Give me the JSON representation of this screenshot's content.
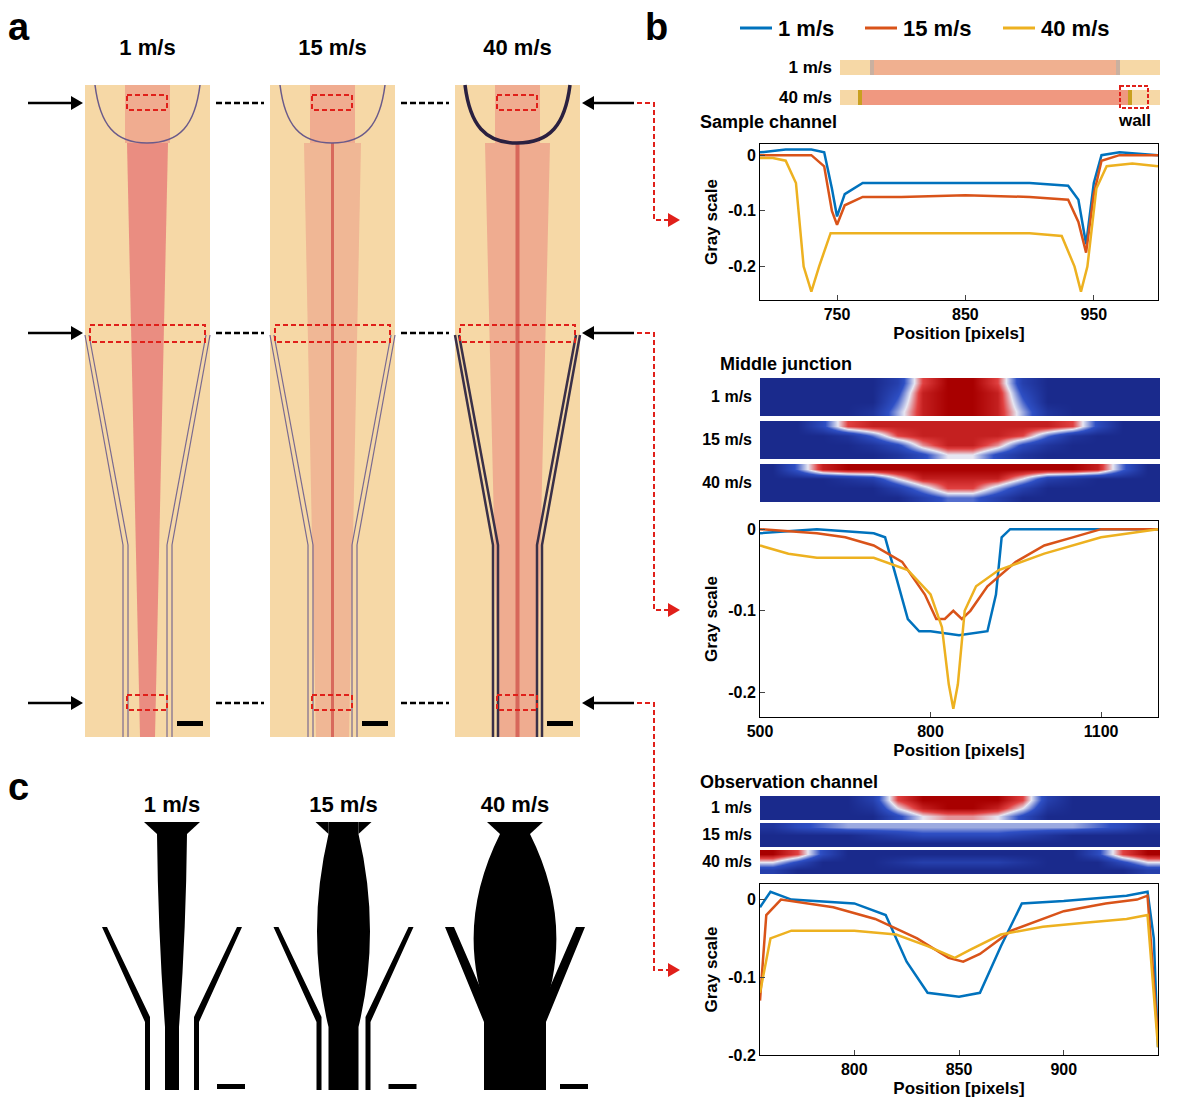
{
  "figure": {
    "panel_letters": [
      "a",
      "b",
      "c"
    ],
    "panel_a": {
      "labels": [
        "1 m/s",
        "15 m/s",
        "40 m/s"
      ]
    },
    "panel_c": {
      "labels": [
        "1 m/s",
        "15 m/s",
        "40 m/s"
      ]
    },
    "sample_strips": {
      "labels": [
        "1 m/s",
        "40 m/s"
      ],
      "annotation": "wall"
    }
  },
  "chart_data": [
    {
      "type": "line",
      "title": "Sample channel",
      "x_label": "Position [pixels]",
      "y_label": "Gray scale",
      "xlim": [
        690,
        1000
      ],
      "xticks": [
        750,
        850,
        950
      ],
      "ylim": [
        -0.26,
        0.02
      ],
      "yticks": [
        -0.2,
        -0.1,
        0
      ],
      "grid": false,
      "legend": "top",
      "series": [
        {
          "name": "1 m/s",
          "color": "#0072bd",
          "x": [
            690,
            710,
            730,
            740,
            746,
            750,
            756,
            770,
            800,
            850,
            900,
            930,
            938,
            944,
            950,
            956,
            970,
            1000
          ],
          "values": [
            0.005,
            0.01,
            0.01,
            0.005,
            -0.06,
            -0.11,
            -0.07,
            -0.05,
            -0.05,
            -0.05,
            -0.05,
            -0.055,
            -0.08,
            -0.16,
            -0.05,
            0,
            0.005,
            0
          ]
        },
        {
          "name": "15 m/s",
          "color": "#d95319",
          "x": [
            690,
            710,
            730,
            740,
            746,
            750,
            756,
            770,
            800,
            850,
            900,
            930,
            938,
            944,
            950,
            956,
            970,
            1000
          ],
          "values": [
            0,
            0,
            0,
            -0.02,
            -0.1,
            -0.125,
            -0.09,
            -0.075,
            -0.075,
            -0.072,
            -0.075,
            -0.08,
            -0.12,
            -0.175,
            -0.07,
            -0.01,
            0,
            0
          ]
        },
        {
          "name": "40 m/s",
          "color": "#edb120",
          "x": [
            690,
            700,
            710,
            718,
            724,
            730,
            736,
            745,
            760,
            800,
            850,
            900,
            925,
            935,
            940,
            945,
            952,
            960,
            980,
            1000
          ],
          "values": [
            -0.005,
            -0.005,
            -0.01,
            -0.05,
            -0.2,
            -0.245,
            -0.2,
            -0.14,
            -0.14,
            -0.14,
            -0.14,
            -0.14,
            -0.145,
            -0.2,
            -0.245,
            -0.2,
            -0.06,
            -0.02,
            -0.015,
            -0.02
          ]
        }
      ]
    },
    {
      "type": "line",
      "title": "Middle junction",
      "x_label": "Position [pixels]",
      "y_label": "Gray scale",
      "xlim": [
        500,
        1200
      ],
      "xticks": [
        500,
        800,
        1100
      ],
      "ylim": [
        -0.23,
        0.01
      ],
      "yticks": [
        -0.2,
        -0.1,
        0
      ],
      "grid": false,
      "series": [
        {
          "name": "1 m/s",
          "color": "#0072bd",
          "x": [
            500,
            600,
            700,
            720,
            740,
            760,
            780,
            800,
            850,
            900,
            915,
            925,
            940,
            1000,
            1100,
            1200
          ],
          "values": [
            -0.005,
            0,
            -0.005,
            -0.01,
            -0.06,
            -0.11,
            -0.125,
            -0.125,
            -0.13,
            -0.125,
            -0.08,
            -0.01,
            0,
            0,
            0,
            0
          ]
        },
        {
          "name": "15 m/s",
          "color": "#d95319",
          "x": [
            500,
            600,
            650,
            700,
            750,
            790,
            810,
            825,
            840,
            855,
            870,
            900,
            950,
            1000,
            1050,
            1100,
            1200
          ],
          "values": [
            0,
            -0.005,
            -0.01,
            -0.02,
            -0.04,
            -0.08,
            -0.11,
            -0.11,
            -0.1,
            -0.11,
            -0.1,
            -0.07,
            -0.04,
            -0.02,
            -0.01,
            0,
            0
          ]
        },
        {
          "name": "40 m/s",
          "color": "#edb120",
          "x": [
            500,
            550,
            600,
            700,
            760,
            800,
            820,
            832,
            840,
            848,
            860,
            880,
            920,
            1000,
            1100,
            1200
          ],
          "values": [
            -0.02,
            -0.03,
            -0.035,
            -0.035,
            -0.05,
            -0.08,
            -0.12,
            -0.19,
            -0.22,
            -0.19,
            -0.1,
            -0.07,
            -0.05,
            -0.03,
            -0.01,
            0
          ]
        }
      ],
      "heatmaps": {
        "zlim": [
          0,
          1
        ],
        "strips": [
          {
            "label": "1 m/s",
            "cells": [
              [
                0,
                0,
                0,
                0,
                0,
                0.2,
                0.8,
                1,
                1,
                0.8,
                0.2,
                0,
                0,
                0,
                0,
                0
              ],
              [
                0,
                0,
                0,
                0,
                0,
                0.3,
                0.9,
                1,
                1,
                0.9,
                0.3,
                0,
                0,
                0,
                0,
                0
              ],
              [
                0,
                0,
                0,
                0,
                0,
                0.4,
                0.9,
                1,
                1,
                0.9,
                0.4,
                0,
                0,
                0,
                0,
                0
              ],
              [
                0,
                0,
                0,
                0,
                0.1,
                0.5,
                0.9,
                1,
                1,
                0.9,
                0.5,
                0.1,
                0,
                0,
                0,
                0
              ]
            ]
          },
          {
            "label": "15 m/s",
            "cells": [
              [
                0,
                0,
                0.3,
                0.8,
                0.9,
                0.9,
                0.9,
                0.9,
                0.9,
                0.9,
                0.9,
                0.9,
                0.8,
                0.3,
                0,
                0
              ],
              [
                0,
                0,
                0,
                0.1,
                0.4,
                0.8,
                0.9,
                0.9,
                0.9,
                0.9,
                0.8,
                0.4,
                0.1,
                0,
                0,
                0
              ],
              [
                0,
                0,
                0,
                0,
                0.1,
                0.3,
                0.7,
                0.9,
                0.9,
                0.7,
                0.3,
                0.1,
                0,
                0,
                0,
                0
              ],
              [
                0,
                0,
                0,
                0,
                0,
                0.1,
                0.3,
                0.6,
                0.6,
                0.3,
                0.1,
                0,
                0,
                0,
                0,
                0
              ]
            ]
          },
          {
            "label": "40 m/s",
            "cells": [
              [
                0,
                0.4,
                0.9,
                1,
                1,
                1,
                1,
                1,
                1,
                1,
                1,
                1,
                1,
                0.9,
                0.4,
                0
              ],
              [
                0,
                0,
                0,
                0.1,
                0.2,
                0.6,
                0.9,
                0.9,
                0.9,
                0.9,
                0.6,
                0.2,
                0.1,
                0,
                0,
                0
              ],
              [
                0,
                0,
                0,
                0,
                0,
                0.2,
                0.5,
                0.8,
                0.8,
                0.5,
                0.2,
                0,
                0,
                0,
                0,
                0
              ],
              [
                0,
                0,
                0,
                0,
                0,
                0,
                0.2,
                0.4,
                0.4,
                0.2,
                0,
                0,
                0,
                0,
                0,
                0
              ]
            ]
          }
        ]
      }
    },
    {
      "type": "line",
      "title": "Observation channel",
      "x_label": "Position [pixels]",
      "y_label": "Gray scale",
      "xlim": [
        755,
        945
      ],
      "xticks": [
        800,
        850,
        900
      ],
      "ylim": [
        -0.2,
        0.02
      ],
      "yticks": [
        -0.2,
        -0.1,
        0
      ],
      "grid": false,
      "series": [
        {
          "name": "1 m/s",
          "color": "#0072bd",
          "x": [
            755,
            760,
            770,
            800,
            815,
            825,
            835,
            850,
            860,
            870,
            880,
            900,
            930,
            940,
            943,
            945
          ],
          "values": [
            -0.01,
            0.01,
            0,
            -0.005,
            -0.02,
            -0.08,
            -0.12,
            -0.125,
            -0.12,
            -0.06,
            -0.005,
            -0.002,
            0.005,
            0.01,
            -0.05,
            -0.19
          ]
        },
        {
          "name": "15 m/s",
          "color": "#d95319",
          "x": [
            755,
            758,
            765,
            790,
            810,
            830,
            845,
            852,
            860,
            875,
            900,
            920,
            935,
            940,
            945
          ],
          "values": [
            -0.13,
            -0.02,
            0,
            -0.01,
            -0.025,
            -0.05,
            -0.075,
            -0.08,
            -0.07,
            -0.04,
            -0.015,
            -0.005,
            0,
            0.005,
            -0.18
          ]
        },
        {
          "name": "40 m/s",
          "color": "#edb120",
          "x": [
            755,
            760,
            770,
            800,
            820,
            835,
            848,
            855,
            870,
            890,
            910,
            930,
            940,
            945
          ],
          "values": [
            -0.12,
            -0.05,
            -0.04,
            -0.04,
            -0.045,
            -0.06,
            -0.075,
            -0.065,
            -0.045,
            -0.035,
            -0.03,
            -0.025,
            -0.02,
            -0.19
          ]
        }
      ],
      "heatmaps": {
        "zlim": [
          0,
          1
        ],
        "strips": [
          {
            "label": "1 m/s",
            "cells": [
              [
                0,
                0,
                0,
                0,
                0.2,
                0.8,
                1,
                1,
                1,
                1,
                0.8,
                0.2,
                0,
                0,
                0,
                0
              ],
              [
                0,
                0,
                0,
                0,
                0.1,
                0.6,
                0.9,
                1,
                1,
                0.9,
                0.6,
                0.1,
                0,
                0,
                0,
                0
              ],
              [
                0,
                0,
                0,
                0,
                0,
                0.3,
                0.6,
                0.7,
                0.7,
                0.6,
                0.3,
                0,
                0,
                0,
                0,
                0
              ]
            ]
          },
          {
            "label": "15 m/s",
            "cells": [
              [
                0.1,
                0.3,
                0.4,
                0.5,
                0.5,
                0.5,
                0.5,
                0.5,
                0.5,
                0.5,
                0.5,
                0.5,
                0.5,
                0.4,
                0.3,
                0.1
              ],
              [
                0,
                0,
                0,
                0,
                0.1,
                0.2,
                0.3,
                0.3,
                0.3,
                0.3,
                0.2,
                0.1,
                0,
                0,
                0,
                0
              ],
              [
                0,
                0,
                0,
                0,
                0,
                0,
                0,
                0,
                0,
                0,
                0,
                0,
                0,
                0,
                0,
                0
              ]
            ]
          },
          {
            "label": "40 m/s",
            "cells": [
              [
                1,
                0.8,
                0.3,
                0,
                0,
                0,
                0,
                0,
                0,
                0,
                0,
                0,
                0,
                0.3,
                0.8,
                1
              ],
              [
                0.6,
                0.3,
                0,
                0,
                0,
                0.1,
                0.2,
                0.2,
                0.2,
                0.2,
                0.1,
                0,
                0,
                0,
                0.3,
                0.6
              ],
              [
                0.2,
                0,
                0,
                0,
                0,
                0,
                0,
                0,
                0,
                0,
                0,
                0,
                0,
                0,
                0,
                0.2
              ]
            ]
          }
        ]
      }
    }
  ]
}
